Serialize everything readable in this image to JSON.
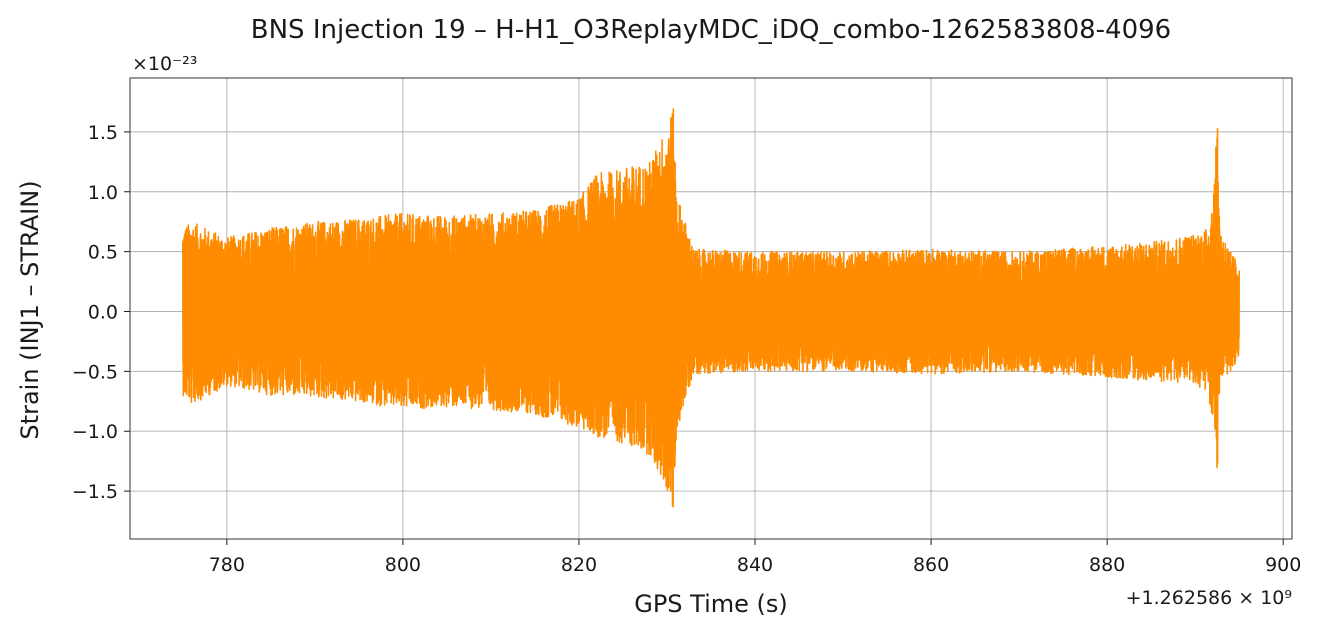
{
  "chart_data": {
    "type": "line",
    "title": "BNS Injection 19 – H-H1_O3ReplayMDC_iDQ_combo-1262583808-4096",
    "xlabel": "GPS Time (s)",
    "ylabel": "Strain (INJ1 – STRAIN)",
    "x_offset_label": "+1.262586 × 10⁹",
    "y_scale_label": "×10⁻²³",
    "xlim": [
      769,
      901
    ],
    "ylim": [
      -1.9,
      1.95
    ],
    "x_ticks": [
      780,
      800,
      820,
      840,
      860,
      880,
      900
    ],
    "x_tick_labels": [
      "780",
      "800",
      "820",
      "840",
      "860",
      "880",
      "900"
    ],
    "y_ticks": [
      -1.5,
      -1.0,
      -0.5,
      0.0,
      0.5,
      1.0,
      1.5
    ],
    "y_tick_labels": [
      "−1.5",
      "−1.0",
      "−0.5",
      "0.0",
      "0.5",
      "1.0",
      "1.5"
    ],
    "grid": true,
    "series": [
      {
        "color": "#ff8c00",
        "x_range": [
          775,
          895
        ],
        "envelope": {
          "x": [
            775,
            776,
            780,
            785,
            790,
            795,
            800,
            805,
            810,
            815,
            820,
            822,
            825,
            828,
            830,
            830.7,
            831.1,
            833,
            840,
            850,
            860,
            870,
            880,
            885,
            890,
            891.5,
            892.3,
            892.5,
            892.8,
            894,
            895
          ],
          "upper": [
            0.7,
            0.75,
            0.62,
            0.7,
            0.75,
            0.78,
            0.82,
            0.8,
            0.82,
            0.85,
            0.95,
            1.15,
            1.2,
            1.25,
            1.55,
            1.72,
            1.0,
            0.52,
            0.5,
            0.5,
            0.52,
            0.5,
            0.55,
            0.58,
            0.65,
            0.7,
            1.2,
            1.78,
            0.7,
            0.5,
            0.4
          ],
          "lower": [
            -0.7,
            -0.78,
            -0.62,
            -0.7,
            -0.72,
            -0.76,
            -0.82,
            -0.8,
            -0.82,
            -0.86,
            -0.98,
            -1.05,
            -1.1,
            -1.2,
            -1.5,
            -1.72,
            -1.0,
            -0.52,
            -0.5,
            -0.5,
            -0.52,
            -0.5,
            -0.55,
            -0.58,
            -0.6,
            -0.7,
            -1.1,
            -1.42,
            -0.6,
            -0.5,
            -0.4
          ]
        }
      }
    ]
  }
}
